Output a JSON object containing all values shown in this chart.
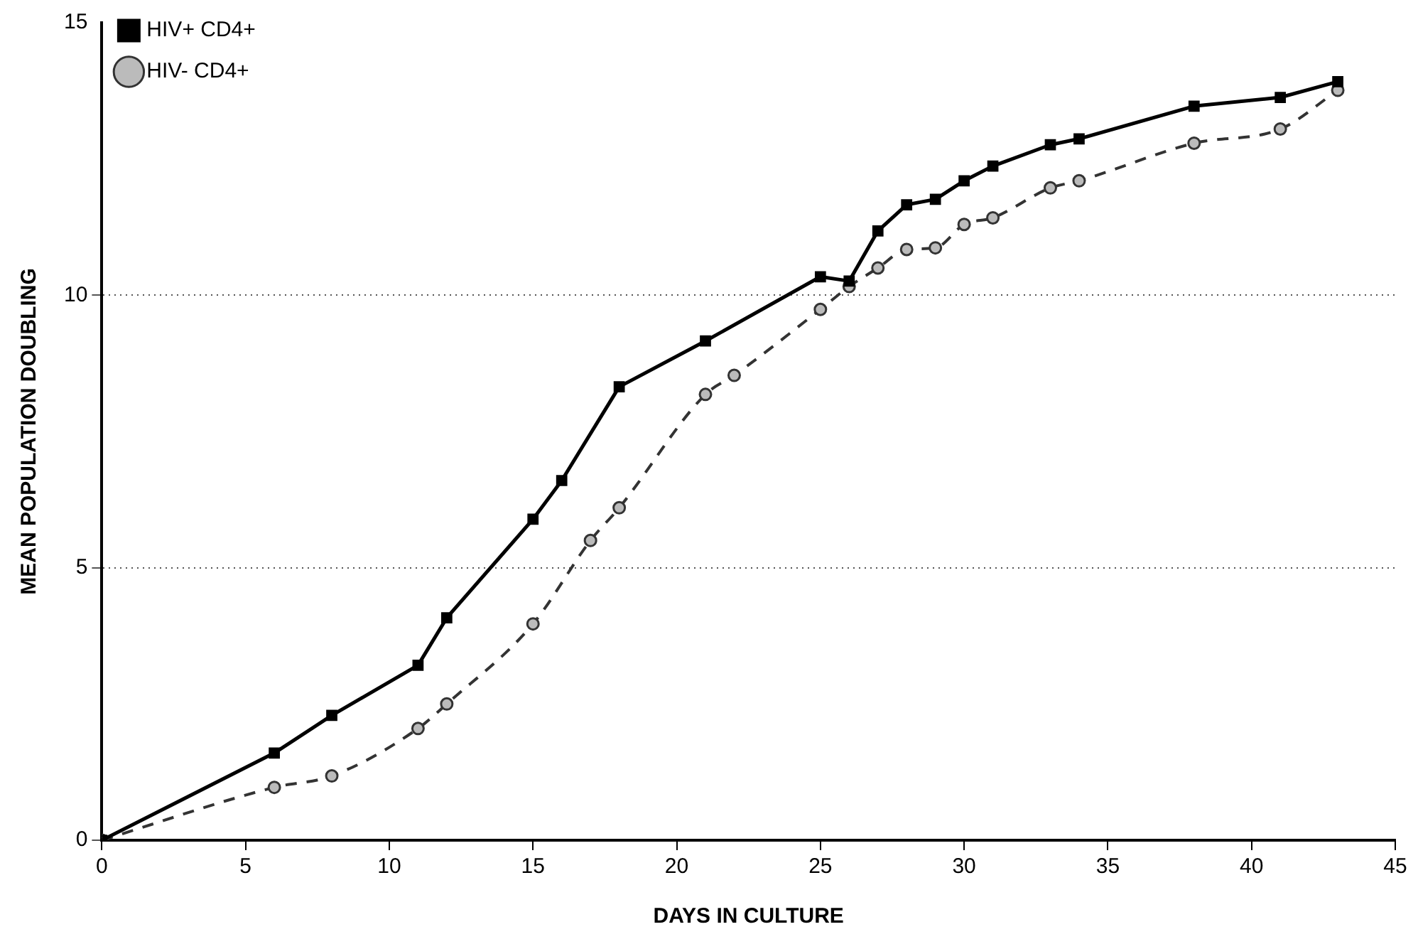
{
  "chart_data": {
    "type": "line",
    "xlabel": "DAYS IN CULTURE",
    "ylabel": "MEAN POPULATION DOUBLING",
    "xlim": [
      0,
      45
    ],
    "xticks": [
      0,
      5,
      10,
      15,
      20,
      25,
      30,
      35,
      40,
      45
    ],
    "ylim": [
      0,
      15
    ],
    "yticks": [
      0,
      5,
      10,
      15
    ],
    "grid": "y",
    "legend": "top left",
    "series": [
      {
        "name": "HIV- CD4+",
        "color": "#333333",
        "marker": "circle",
        "line_style": "dashed",
        "x": [
          0,
          6,
          8,
          11,
          12,
          15,
          17,
          18,
          21,
          22,
          25,
          26,
          27,
          28,
          29,
          30,
          31,
          33,
          34,
          38,
          41,
          43
        ],
        "values": [
          0,
          0.97,
          1.18,
          2.05,
          2.5,
          3.97,
          5.5,
          6.1,
          8.18,
          8.53,
          9.74,
          10.16,
          10.5,
          10.84,
          10.87,
          11.3,
          11.42,
          11.97,
          12.1,
          12.79,
          13.05,
          13.76
        ]
      },
      {
        "name": "HIV+ CD4+",
        "color": "#000000",
        "marker": "square",
        "line_style": "solid",
        "x": [
          0,
          6,
          8,
          11,
          12,
          15,
          16,
          18,
          21,
          25,
          26,
          27,
          28,
          29,
          30,
          31,
          33,
          34,
          38,
          41,
          43
        ],
        "values": [
          0,
          1.6,
          2.29,
          3.21,
          4.08,
          5.89,
          6.6,
          8.32,
          9.16,
          10.34,
          10.26,
          11.18,
          11.66,
          11.76,
          12.1,
          12.37,
          12.76,
          12.87,
          13.47,
          13.63,
          13.92
        ]
      }
    ]
  }
}
